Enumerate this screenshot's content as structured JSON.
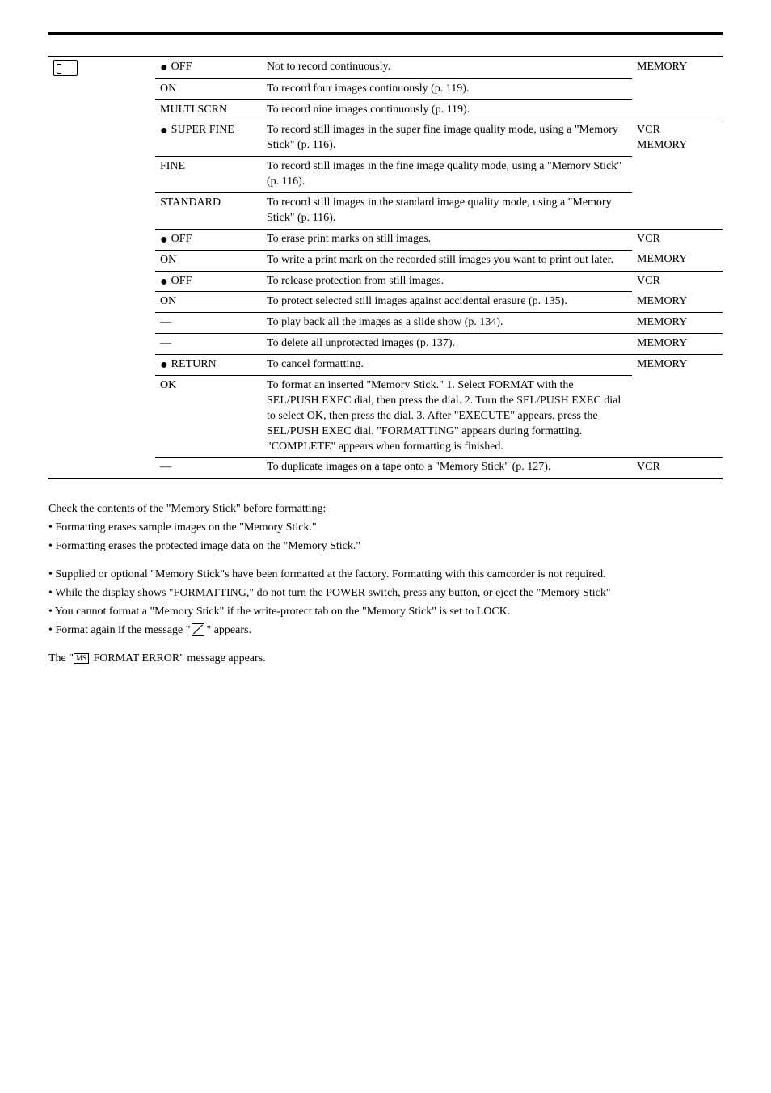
{
  "rows": [
    {
      "icon": true,
      "mode_bullet": true,
      "mode": "OFF",
      "desc": "Not to record continuously.",
      "switch": "MEMORY",
      "top": "first"
    },
    {
      "mode": "ON",
      "desc": "To record four images continuously (p. 119).",
      "inner_top_from": 1
    },
    {
      "mode": "MULTI SCRN",
      "desc": "To record nine images continuously (p. 119).",
      "inner_top_from": 1
    },
    {
      "mode_bullet": true,
      "mode": "SUPER FINE",
      "desc": "To record still images in the super fine image quality mode, using a \"Memory Stick\" (p. 116).",
      "switch": "VCR\nMEMORY",
      "top": "row"
    },
    {
      "mode": "FINE",
      "desc": "To record still images in the fine image quality mode, using a \"Memory Stick\" (p. 116).",
      "inner_top_from": 1
    },
    {
      "mode": "STANDARD",
      "desc": "To record still images in the standard image quality mode, using a \"Memory Stick\" (p. 116).",
      "inner_top_from": 1
    },
    {
      "mode_bullet": true,
      "mode": "OFF",
      "desc": "To erase print marks on still images.",
      "switch": "VCR",
      "top": "row"
    },
    {
      "mode": "ON",
      "desc": "To write a print mark on the recorded still images you want to print out later.",
      "switch": "MEMORY",
      "inner_top_from": 1
    },
    {
      "mode_bullet": true,
      "mode": "OFF",
      "desc": "To release protection from still images.",
      "switch": "VCR",
      "top": "row"
    },
    {
      "mode": "ON",
      "desc": "To protect selected still images against accidental erasure (p. 135).",
      "switch": "MEMORY",
      "inner_top_from": 1
    },
    {
      "mode": "—",
      "desc": "To play back all the images as a slide show (p. 134).",
      "switch": "MEMORY",
      "top": "row"
    },
    {
      "mode": "—",
      "desc": "To delete all unprotected images (p. 137).",
      "switch": "MEMORY",
      "top": "row"
    },
    {
      "mode_bullet": true,
      "mode": "RETURN",
      "desc": "To cancel formatting.",
      "switch": "MEMORY",
      "top": "row"
    },
    {
      "mode": "OK",
      "desc": "To format an inserted \"Memory Stick.\" 1. Select FORMAT with the SEL/PUSH EXEC dial, then press the dial. 2. Turn the SEL/PUSH EXEC dial to select OK, then press the dial. 3. After \"EXECUTE\" appears, press the SEL/PUSH EXEC dial. \"FORMATTING\" appears during formatting. \"COMPLETE\" appears when formatting is finished.",
      "inner_top_from": 1
    },
    {
      "mode": "—",
      "desc": "To duplicate images on a tape onto a \"Memory Stick\" (p. 127).",
      "switch": "VCR",
      "top": "row",
      "bottom": "last"
    }
  ],
  "notes": {
    "format_intro": "Check the contents of the \"Memory Stick\" before formatting:",
    "format_b1": "• Formatting erases sample images on the \"Memory Stick.\"",
    "format_b2": "• Formatting erases the protected image data on the \"Memory Stick.\"",
    "n1": "• Supplied or optional \"Memory Stick\"s have been formatted at the factory. Formatting with this camcorder is not required.",
    "n2": "• While the display shows \"FORMATTING,\" do not turn the POWER switch, press any button, or eject the \"Memory Stick\"",
    "n3": "• You cannot format a \"Memory Stick\" if the write-protect tab on the \"Memory Stick\" is set to LOCK.",
    "n4_pre": "• Format again if the message \"",
    "n4_post": "\" appears.",
    "err_pre": "The \"",
    "err_post": " FORMAT ERROR\" message appears."
  }
}
